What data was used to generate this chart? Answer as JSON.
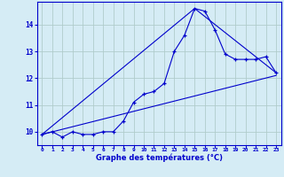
{
  "hours": [
    0,
    1,
    2,
    3,
    4,
    5,
    6,
    7,
    8,
    9,
    10,
    11,
    12,
    13,
    14,
    15,
    16,
    17,
    18,
    19,
    20,
    21,
    22,
    23
  ],
  "temps": [
    9.9,
    10.0,
    9.8,
    10.0,
    9.9,
    9.9,
    10.0,
    10.0,
    10.4,
    11.1,
    11.4,
    11.5,
    11.8,
    13.0,
    13.6,
    14.6,
    14.5,
    13.8,
    12.9,
    12.7,
    12.7,
    12.7,
    12.8,
    12.2
  ],
  "trend1_x": [
    0,
    23
  ],
  "trend1_y": [
    9.9,
    12.1
  ],
  "trend2_x": [
    0,
    15,
    23
  ],
  "trend2_y": [
    9.9,
    14.6,
    12.2
  ],
  "line_color": "#0000cc",
  "bg_color": "#d5ecf5",
  "grid_color": "#b0cccc",
  "xlabel": "Graphe des températures (°C)",
  "ylabel_ticks": [
    10,
    11,
    12,
    13,
    14
  ],
  "xlim": [
    -0.5,
    23.5
  ],
  "ylim": [
    9.5,
    14.85
  ]
}
